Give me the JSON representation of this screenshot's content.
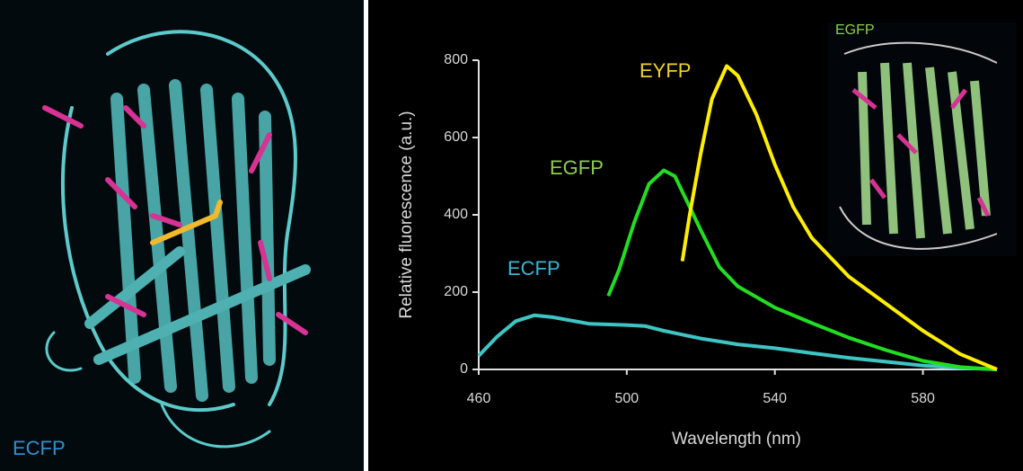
{
  "chart_data": {
    "type": "line",
    "xlabel": "Wavelength (nm)",
    "ylabel": "Relative fluorescence (a.u.)",
    "xlim": [
      460,
      600
    ],
    "xticks": [
      460,
      500,
      540,
      580
    ],
    "ylim": [
      0,
      800
    ],
    "yticks": [
      0,
      200,
      400,
      600,
      800
    ],
    "series": [
      {
        "name": "ECFP",
        "color": "#3cb4d2",
        "line_color": "#3fc4c4",
        "x": [
          460,
          465,
          470,
          475,
          480,
          490,
          500,
          505,
          510,
          520,
          530,
          540,
          550,
          560,
          570,
          580,
          590,
          600
        ],
        "values": [
          35,
          85,
          125,
          140,
          135,
          118,
          115,
          112,
          100,
          80,
          65,
          55,
          42,
          30,
          20,
          10,
          4,
          0
        ]
      },
      {
        "name": "EGFP",
        "color": "#8ccd4e",
        "line_color": "#22dd22",
        "x": [
          495,
          498,
          502,
          506,
          510,
          513,
          516,
          520,
          525,
          530,
          540,
          550,
          560,
          570,
          580,
          590,
          600
        ],
        "values": [
          190,
          260,
          380,
          480,
          515,
          500,
          440,
          360,
          265,
          215,
          160,
          120,
          82,
          50,
          22,
          6,
          0
        ]
      },
      {
        "name": "EYFP",
        "color": "#f0d22a",
        "line_color": "#ffee00",
        "x": [
          515,
          517,
          520,
          523,
          527,
          530,
          535,
          540,
          545,
          550,
          560,
          570,
          580,
          590,
          600
        ],
        "values": [
          280,
          400,
          560,
          700,
          785,
          760,
          660,
          530,
          420,
          340,
          240,
          170,
          100,
          40,
          0
        ]
      }
    ],
    "annotations": [
      "ECFP",
      "EGFP"
    ]
  }
}
